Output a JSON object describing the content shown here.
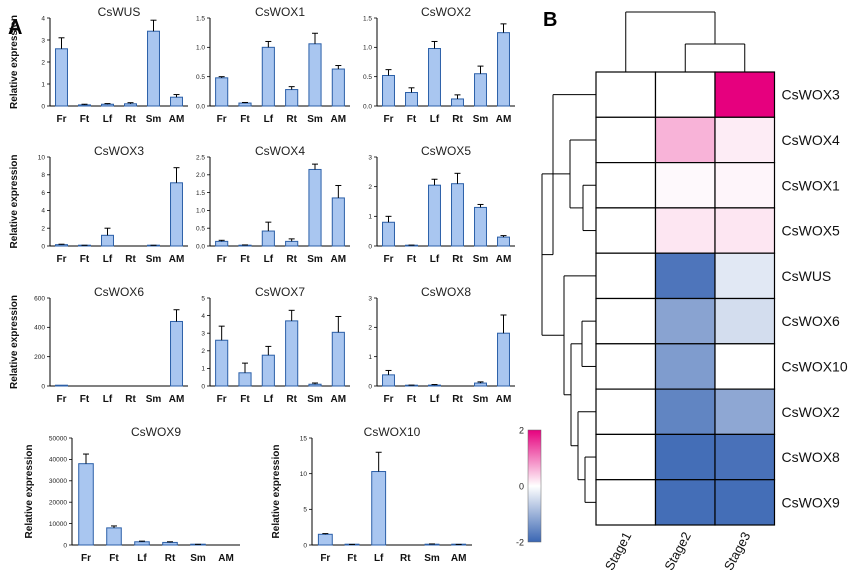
{
  "panels": {
    "a": "A",
    "b": "B"
  },
  "colors": {
    "bar": "#a9c6f0",
    "bar_edge": "#2b5fa8",
    "high": "#e6007e",
    "mid": "#ffffff",
    "low": "#3a66b3"
  },
  "chart_data": [
    {
      "type": "bar",
      "title": "CsWUS",
      "ylabel": "Relative expression",
      "categories": [
        "Fr",
        "Ft",
        "Lf",
        "Rt",
        "Sm",
        "AM"
      ],
      "values": [
        2.6,
        0.05,
        0.08,
        0.1,
        3.4,
        0.4
      ],
      "errors": [
        0.5,
        0.03,
        0.03,
        0.05,
        0.5,
        0.12
      ],
      "ylim": [
        0,
        4
      ],
      "yticks": [
        "0",
        "1",
        "2",
        "3",
        "4"
      ]
    },
    {
      "type": "bar",
      "title": "CsWOX1",
      "ylabel": "",
      "categories": [
        "Fr",
        "Ft",
        "Lf",
        "Rt",
        "Sm",
        "AM"
      ],
      "values": [
        0.48,
        0.05,
        1.0,
        0.28,
        1.06,
        0.63
      ],
      "errors": [
        0.02,
        0.01,
        0.1,
        0.05,
        0.18,
        0.06
      ],
      "ylim": [
        0,
        1.5
      ],
      "yticks": [
        "0.0",
        "0.5",
        "1.0",
        "1.5"
      ]
    },
    {
      "type": "bar",
      "title": "CsWOX2",
      "ylabel": "",
      "categories": [
        "Fr",
        "Ft",
        "Lf",
        "Rt",
        "Sm",
        "AM"
      ],
      "values": [
        0.52,
        0.23,
        0.98,
        0.12,
        0.55,
        1.25
      ],
      "errors": [
        0.1,
        0.08,
        0.12,
        0.07,
        0.13,
        0.15
      ],
      "ylim": [
        0,
        1.5
      ],
      "yticks": [
        "0.0",
        "0.5",
        "1.0",
        "1.5"
      ]
    },
    {
      "type": "bar",
      "title": "CsWOX3",
      "ylabel": "Relative expression",
      "categories": [
        "Fr",
        "Ft",
        "Lf",
        "Rt",
        "Sm",
        "AM"
      ],
      "values": [
        0.15,
        0.05,
        1.2,
        0.0,
        0.05,
        7.1
      ],
      "errors": [
        0.05,
        0.03,
        0.8,
        0.0,
        0.03,
        1.7
      ],
      "ylim": [
        0,
        10
      ],
      "yticks": [
        "0",
        "2",
        "4",
        "6",
        "8",
        "10"
      ]
    },
    {
      "type": "bar",
      "title": "CsWOX4",
      "ylabel": "",
      "categories": [
        "Fr",
        "Ft",
        "Lf",
        "Rt",
        "Sm",
        "AM"
      ],
      "values": [
        0.13,
        0.02,
        0.42,
        0.13,
        2.15,
        1.35
      ],
      "errors": [
        0.03,
        0.01,
        0.25,
        0.07,
        0.15,
        0.35
      ],
      "ylim": [
        0,
        2.5
      ],
      "yticks": [
        "0.0",
        "0.5",
        "1.0",
        "1.5",
        "2.0",
        "2.5"
      ]
    },
    {
      "type": "bar",
      "title": "CsWOX5",
      "ylabel": "",
      "categories": [
        "Fr",
        "Ft",
        "Lf",
        "Rt",
        "Sm",
        "AM"
      ],
      "values": [
        0.8,
        0.02,
        2.05,
        2.1,
        1.3,
        0.3
      ],
      "errors": [
        0.2,
        0.01,
        0.2,
        0.35,
        0.1,
        0.05
      ],
      "ylim": [
        0,
        3
      ],
      "yticks": [
        "0",
        "1",
        "2",
        "3"
      ]
    },
    {
      "type": "bar",
      "title": "CsWOX6",
      "ylabel": "Relative expression",
      "categories": [
        "Fr",
        "Ft",
        "Lf",
        "Rt",
        "Sm",
        "AM"
      ],
      "values": [
        1,
        0,
        0,
        0,
        0,
        440
      ],
      "errors": [
        0,
        0,
        0,
        0,
        0,
        80
      ],
      "ylim": [
        0,
        600
      ],
      "yticks": [
        "0",
        "200",
        "400",
        "600"
      ]
    },
    {
      "type": "bar",
      "title": "CsWOX7",
      "ylabel": "",
      "categories": [
        "Fr",
        "Ft",
        "Lf",
        "Rt",
        "Sm",
        "AM"
      ],
      "values": [
        2.6,
        0.75,
        1.75,
        3.7,
        0.1,
        3.05
      ],
      "errors": [
        0.8,
        0.55,
        0.5,
        0.6,
        0.07,
        0.9
      ],
      "ylim": [
        0,
        5
      ],
      "yticks": [
        "0",
        "1",
        "2",
        "3",
        "4",
        "5"
      ]
    },
    {
      "type": "bar",
      "title": "CsWOX8",
      "ylabel": "",
      "categories": [
        "Fr",
        "Ft",
        "Lf",
        "Rt",
        "Sm",
        "AM"
      ],
      "values": [
        0.38,
        0.02,
        0.03,
        0.0,
        0.1,
        1.8
      ],
      "errors": [
        0.15,
        0.01,
        0.02,
        0.0,
        0.04,
        0.62
      ],
      "ylim": [
        0,
        3
      ],
      "yticks": [
        "0",
        "1",
        "2",
        "3"
      ]
    },
    {
      "type": "bar",
      "title": "CsWOX9",
      "ylabel": "Relative expression",
      "categories": [
        "Fr",
        "Ft",
        "Lf",
        "Rt",
        "Sm",
        "AM"
      ],
      "values": [
        38000,
        8000,
        1500,
        1200,
        200,
        0
      ],
      "errors": [
        4500,
        900,
        300,
        300,
        100,
        0
      ],
      "ylim": [
        0,
        50000
      ],
      "yticks": [
        "0",
        "10000",
        "20000",
        "30000",
        "40000",
        "50000"
      ]
    },
    {
      "type": "bar",
      "title": "CsWOX10",
      "ylabel": "Relative expression",
      "categories": [
        "Fr",
        "Ft",
        "Lf",
        "Rt",
        "Sm",
        "AM"
      ],
      "values": [
        1.5,
        0.05,
        10.3,
        0.0,
        0.1,
        0.05
      ],
      "errors": [
        0.1,
        0.03,
        2.7,
        0.0,
        0.05,
        0.03
      ],
      "ylim": [
        0,
        15
      ],
      "yticks": [
        "0",
        "5",
        "10",
        "15"
      ]
    },
    {
      "type": "heatmap",
      "rows": [
        "CsWOX3",
        "CsWOX4",
        "CsWOX1",
        "CsWOX5",
        "CsWUS",
        "CsWOX6",
        "CsWOX10",
        "CsWOX2",
        "CsWOX8",
        "CsWOX9"
      ],
      "columns": [
        "Stage1",
        "Stage2",
        "Stage3"
      ],
      "values": [
        [
          0,
          0,
          2
        ],
        [
          0,
          0.6,
          0.15
        ],
        [
          0,
          0.05,
          0.08
        ],
        [
          0,
          0.2,
          0.2
        ],
        [
          0,
          -1.8,
          -0.3
        ],
        [
          0,
          -1.2,
          -0.45
        ],
        [
          0,
          -1.3,
          0
        ],
        [
          0,
          -1.6,
          -1.15
        ],
        [
          0,
          -1.9,
          -1.85
        ],
        [
          0,
          -1.9,
          -1.9
        ]
      ],
      "colorbar": {
        "range": [
          -2,
          2
        ],
        "ticks": [
          "2",
          "0",
          "-2"
        ]
      }
    }
  ]
}
